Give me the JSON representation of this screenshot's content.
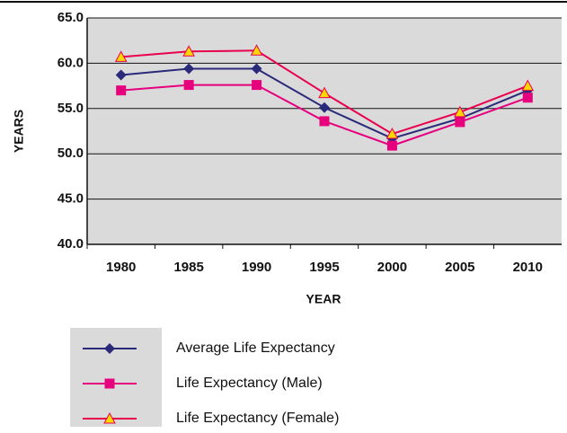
{
  "chart_data": {
    "type": "line",
    "x_label": "YEAR",
    "y_label": "YEARS",
    "categories": [
      "1980",
      "1985",
      "1990",
      "1995",
      "2000",
      "2005",
      "2010"
    ],
    "series": [
      {
        "name": "Average Life Expectancy",
        "color": "#2b2a7a",
        "marker": "diamond",
        "marker_color": "#2b2a7a",
        "values": [
          58.7,
          59.4,
          59.4,
          55.1,
          51.7,
          53.9,
          57.0
        ]
      },
      {
        "name": "Life Expectancy (Male)",
        "color": "#e6007e",
        "marker": "square",
        "marker_color": "#e6007e",
        "values": [
          57.0,
          57.6,
          57.6,
          53.6,
          50.9,
          53.5,
          56.2
        ]
      },
      {
        "name": "Life Expectancy (Female)",
        "color": "#e8004e",
        "marker": "triangle",
        "marker_color": "#ffd700",
        "values": [
          60.7,
          61.3,
          61.4,
          56.7,
          52.2,
          54.6,
          57.5
        ]
      }
    ],
    "ylim": [
      40,
      65
    ],
    "yticks": [
      {
        "value": 40,
        "label": "40.0"
      },
      {
        "value": 45,
        "label": "45.0"
      },
      {
        "value": 50,
        "label": "50.0"
      },
      {
        "value": 55,
        "label": "55.0"
      },
      {
        "value": 60,
        "label": "60.0"
      },
      {
        "value": 65,
        "label": "65.0"
      }
    ],
    "grid": true,
    "legend": "bottom"
  }
}
